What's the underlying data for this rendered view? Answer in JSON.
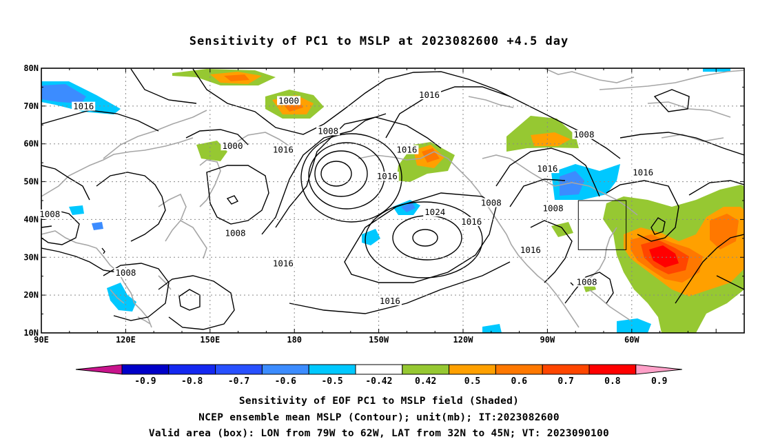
{
  "title": "Sensitivity of PC1 to MSLP at 2023082600 +4.5 day",
  "axes": {
    "lat_labels": [
      "80N",
      "70N",
      "60N",
      "50N",
      "40N",
      "30N",
      "20N",
      "10N"
    ],
    "lon_labels": [
      "90E",
      "120E",
      "150E",
      "180",
      "150W",
      "120W",
      "90W",
      "60W"
    ]
  },
  "contour_labels": [
    {
      "text": "1016",
      "lon": 105,
      "lat": 69.5
    },
    {
      "text": "1000",
      "lon": 178,
      "lat": 71
    },
    {
      "text": "1008",
      "lon": 192,
      "lat": 63
    },
    {
      "text": "1016",
      "lon": 176,
      "lat": 58
    },
    {
      "text": "1016",
      "lon": 220,
      "lat": 58
    },
    {
      "text": "1000",
      "lon": 158,
      "lat": 59
    },
    {
      "text": "1016",
      "lon": 228,
      "lat": 72.5
    },
    {
      "text": "1008",
      "lon": 283,
      "lat": 62
    },
    {
      "text": "1016",
      "lon": 270,
      "lat": 53
    },
    {
      "text": "1016",
      "lon": 304,
      "lat": 52
    },
    {
      "text": "1016",
      "lon": 213,
      "lat": 51
    },
    {
      "text": "1008",
      "lon": 250,
      "lat": 44
    },
    {
      "text": "1008",
      "lon": 272,
      "lat": 42.5
    },
    {
      "text": "1024",
      "lon": 230,
      "lat": 41.5
    },
    {
      "text": "1008",
      "lon": 93,
      "lat": 41
    },
    {
      "text": "1008",
      "lon": 159,
      "lat": 36
    },
    {
      "text": "1016",
      "lon": 243,
      "lat": 39
    },
    {
      "text": "1016",
      "lon": 176,
      "lat": 28
    },
    {
      "text": "1016",
      "lon": 264,
      "lat": 31.5
    },
    {
      "text": "1008",
      "lon": 284,
      "lat": 23
    },
    {
      "text": "1008",
      "lon": 120,
      "lat": 25.5
    },
    {
      "text": "1016",
      "lon": 214,
      "lat": 18
    }
  ],
  "colorbar": {
    "labels": [
      "-0.9",
      "-0.8",
      "-0.7",
      "-0.6",
      "-0.5",
      "-0.42",
      "0.42",
      "0.5",
      "0.6",
      "0.7",
      "0.8",
      "0.9"
    ],
    "colors": [
      "#0000c8",
      "#1428f0",
      "#2850ff",
      "#3c8cff",
      "#00c8ff",
      "#ffffff",
      "#96c832",
      "#ffa000",
      "#ff7800",
      "#ff4600",
      "#ff0000"
    ],
    "low_color": "#c8148c",
    "high_color": "#ffa0c8"
  },
  "captions": [
    "Sensitivity of EOF PC1 to MSLP field (Shaded)",
    "NCEP ensemble mean MSLP (Contour); unit(mb); IT:2023082600",
    "Valid area (box): LON from 79W to 62W, LAT from 32N to 45N; VT: 2023090100"
  ],
  "valid_box": {
    "lon_min": -79,
    "lon_max": -62,
    "lat_min": 32,
    "lat_max": 45
  }
}
